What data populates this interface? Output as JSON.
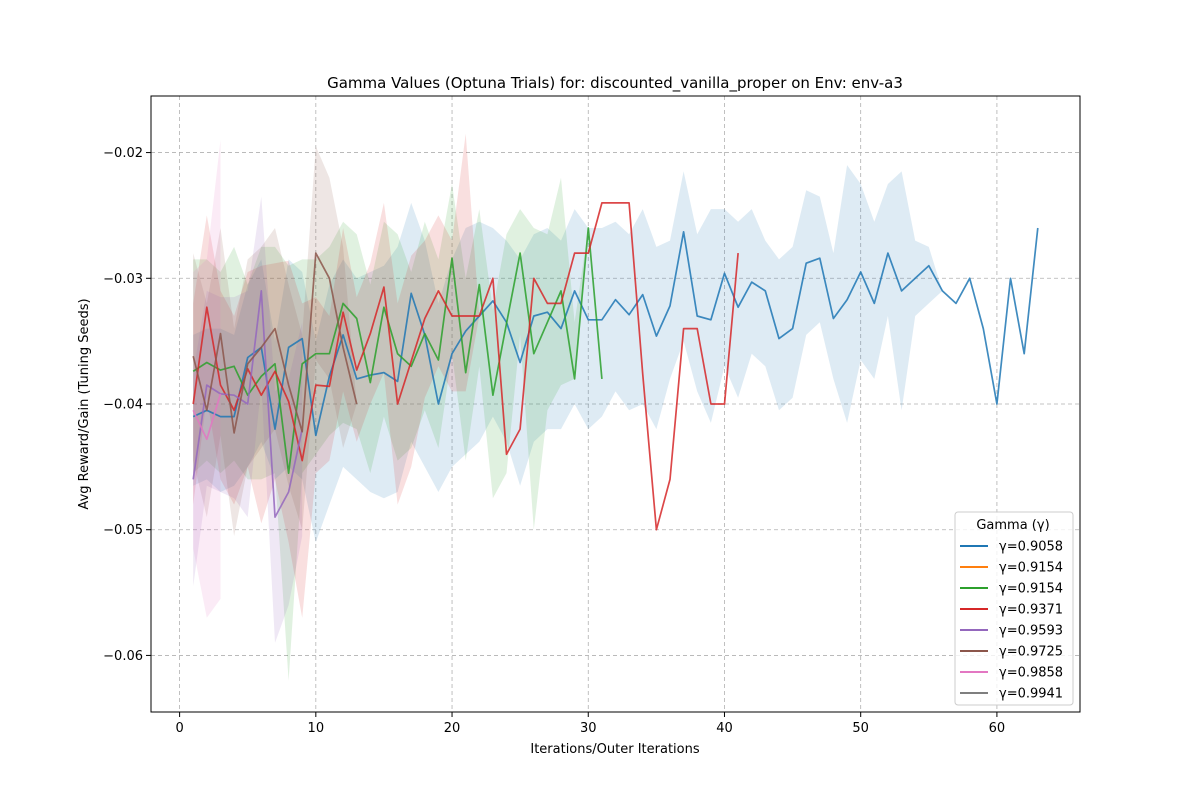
{
  "chart_data": {
    "type": "line",
    "title": "Gamma Values (Optuna Trials) for: discounted_vanilla_proper on Env: env-a3",
    "xlabel": "Iterations/Outer Iterations",
    "ylabel": "Avg Reward/Gain (Tuning Seeds)",
    "xlim": [
      -2.1,
      66.1
    ],
    "ylim": [
      -0.0645,
      -0.0155
    ],
    "xticks": [
      0,
      10,
      20,
      30,
      40,
      50,
      60
    ],
    "yticks": [
      -0.06,
      -0.05,
      -0.04,
      -0.03,
      -0.02
    ],
    "xtick_labels": [
      "0",
      "10",
      "20",
      "30",
      "40",
      "50",
      "60"
    ],
    "ytick_labels": [
      "−0.06",
      "−0.05",
      "−0.04",
      "−0.03",
      "−0.02"
    ],
    "grid": true,
    "legend_title": "Gamma (γ)",
    "legend_position": "lower-right",
    "series": [
      {
        "name": "γ=0.9058",
        "color": "#1f77b4",
        "x": [
          1,
          2,
          3,
          4,
          5,
          6,
          7,
          8,
          9,
          10,
          11,
          12,
          13,
          14,
          15,
          16,
          17,
          18,
          19,
          20,
          21,
          22,
          23,
          24,
          25,
          26,
          27,
          28,
          29,
          30,
          31,
          32,
          33,
          34,
          35,
          36,
          37,
          38,
          39,
          40,
          41,
          42,
          43,
          44,
          45,
          46,
          47,
          48,
          49,
          50,
          51,
          52,
          53,
          54,
          55,
          56,
          57,
          58,
          59,
          60,
          61,
          62,
          63
        ],
        "y": [
          -0.041,
          -0.0405,
          -0.041,
          -0.041,
          -0.0363,
          -0.0355,
          -0.042,
          -0.0355,
          -0.0348,
          -0.0425,
          -0.0378,
          -0.0345,
          -0.038,
          -0.0377,
          -0.0375,
          -0.0382,
          -0.0312,
          -0.0345,
          -0.04,
          -0.036,
          -0.0342,
          -0.033,
          -0.0318,
          -0.0335,
          -0.0367,
          -0.033,
          -0.0327,
          -0.034,
          -0.031,
          -0.0333,
          -0.0333,
          -0.0317,
          -0.0329,
          -0.0313,
          -0.0346,
          -0.0322,
          -0.0263,
          -0.033,
          -0.0333,
          -0.0296,
          -0.0323,
          -0.0303,
          -0.031,
          -0.0348,
          -0.034,
          -0.0288,
          -0.0284,
          -0.0332,
          -0.0317,
          -0.0295,
          -0.032,
          -0.028,
          -0.031,
          -0.03,
          -0.029,
          -0.031,
          -0.032,
          -0.03,
          -0.034,
          -0.04,
          -0.03,
          -0.036,
          -0.026
        ],
        "lower": [
          -0.0465,
          -0.046,
          -0.047,
          -0.0465,
          -0.045,
          -0.043,
          -0.046,
          -0.045,
          -0.046,
          -0.051,
          -0.048,
          -0.045,
          -0.046,
          -0.047,
          -0.0475,
          -0.047,
          -0.043,
          -0.045,
          -0.047,
          -0.045,
          -0.044,
          -0.043,
          -0.041,
          -0.043,
          -0.0465,
          -0.043,
          -0.042,
          -0.042,
          -0.04,
          -0.042,
          -0.041,
          -0.039,
          -0.0405,
          -0.04,
          -0.042,
          -0.038,
          -0.035,
          -0.039,
          -0.0415,
          -0.037,
          -0.0395,
          -0.036,
          -0.037,
          -0.0405,
          -0.0395,
          -0.0345,
          -0.0335,
          -0.038,
          -0.0415,
          -0.0365,
          -0.038,
          -0.033,
          -0.0405,
          -0.033,
          -0.032,
          -0.031,
          -0.032,
          -0.03,
          -0.034,
          -0.04,
          -0.03,
          -0.036,
          -0.026
        ],
        "upper": [
          -0.0345,
          -0.034,
          -0.034,
          -0.0345,
          -0.0305,
          -0.0285,
          -0.035,
          -0.0285,
          -0.0295,
          -0.035,
          -0.0305,
          -0.0285,
          -0.03,
          -0.0295,
          -0.029,
          -0.0275,
          -0.024,
          -0.027,
          -0.032,
          -0.0285,
          -0.026,
          -0.0255,
          -0.026,
          -0.027,
          -0.0285,
          -0.0265,
          -0.026,
          -0.027,
          -0.0245,
          -0.026,
          -0.026,
          -0.0255,
          -0.0265,
          -0.0245,
          -0.0275,
          -0.027,
          -0.0215,
          -0.0265,
          -0.0245,
          -0.0245,
          -0.0255,
          -0.0245,
          -0.027,
          -0.0285,
          -0.0275,
          -0.023,
          -0.0235,
          -0.028,
          -0.021,
          -0.0225,
          -0.0255,
          -0.0225,
          -0.0215,
          -0.027,
          -0.0275,
          -0.031,
          -0.032,
          -0.03,
          -0.034,
          -0.04,
          -0.03,
          -0.036,
          -0.026
        ]
      },
      {
        "name": "γ=0.9154",
        "color": "#ff7f0e",
        "x": [],
        "y": []
      },
      {
        "name": "γ=0.9154",
        "color": "#2ca02c",
        "x": [
          1,
          2,
          3,
          4,
          5,
          6,
          7,
          8,
          9,
          10,
          11,
          12,
          13,
          14,
          15,
          16,
          17,
          18,
          19,
          20,
          21,
          22,
          23,
          24,
          25,
          26,
          27,
          28,
          29,
          30,
          31
        ],
        "y": [
          -0.0374,
          -0.0367,
          -0.0373,
          -0.037,
          -0.0393,
          -0.0378,
          -0.0368,
          -0.0455,
          -0.0368,
          -0.036,
          -0.036,
          -0.032,
          -0.0332,
          -0.0383,
          -0.0323,
          -0.036,
          -0.037,
          -0.0344,
          -0.0365,
          -0.0284,
          -0.0375,
          -0.0305,
          -0.0393,
          -0.0336,
          -0.028,
          -0.036,
          -0.0335,
          -0.031,
          -0.038,
          -0.026,
          -0.038
        ],
        "lower": [
          -0.0455,
          -0.0445,
          -0.0455,
          -0.0445,
          -0.046,
          -0.046,
          -0.0455,
          -0.062,
          -0.0455,
          -0.044,
          -0.0425,
          -0.0415,
          -0.042,
          -0.0455,
          -0.041,
          -0.0445,
          -0.0435,
          -0.0405,
          -0.0435,
          -0.036,
          -0.0445,
          -0.037,
          -0.0475,
          -0.0455,
          -0.0345,
          -0.05,
          -0.0405,
          -0.0385,
          -0.038,
          -0.026,
          -0.038
        ],
        "upper": [
          -0.0285,
          -0.0285,
          -0.0295,
          -0.0275,
          -0.0305,
          -0.0275,
          -0.0275,
          -0.029,
          -0.0285,
          -0.0285,
          -0.0275,
          -0.0255,
          -0.0265,
          -0.0305,
          -0.0255,
          -0.0265,
          -0.0295,
          -0.0255,
          -0.0285,
          -0.0225,
          -0.03,
          -0.0245,
          -0.0325,
          -0.0265,
          -0.0245,
          -0.026,
          -0.0265,
          -0.022,
          -0.0335,
          -0.026,
          -0.038
        ]
      },
      {
        "name": "γ=0.9371",
        "color": "#d62728",
        "x": [
          1,
          2,
          3,
          4,
          5,
          6,
          7,
          8,
          9,
          10,
          11,
          12,
          13,
          14,
          15,
          16,
          17,
          18,
          19,
          20,
          21,
          22,
          23,
          24,
          25,
          26,
          27,
          28,
          29,
          30,
          31,
          32,
          33,
          34,
          35,
          36,
          37,
          38,
          39,
          40,
          41
        ],
        "y": [
          -0.04,
          -0.0323,
          -0.0385,
          -0.0405,
          -0.0372,
          -0.0393,
          -0.0374,
          -0.0398,
          -0.0445,
          -0.0385,
          -0.0386,
          -0.0327,
          -0.0373,
          -0.0344,
          -0.0307,
          -0.04,
          -0.0366,
          -0.0332,
          -0.031,
          -0.033,
          -0.033,
          -0.033,
          -0.03,
          -0.044,
          -0.042,
          -0.03,
          -0.032,
          -0.032,
          -0.028,
          -0.028,
          -0.024,
          -0.024,
          -0.024,
          -0.0376,
          -0.05,
          -0.046,
          -0.034,
          -0.034,
          -0.04,
          -0.04,
          -0.028
        ],
        "lower": [
          -0.048,
          -0.0395,
          -0.046,
          -0.048,
          -0.045,
          -0.0495,
          -0.046,
          -0.051,
          -0.057,
          -0.0455,
          -0.0445,
          -0.039,
          -0.043,
          -0.04,
          -0.0375,
          -0.048,
          -0.045,
          -0.0395,
          -0.037,
          -0.039,
          -0.039,
          -0.033,
          -0.03,
          -0.044,
          -0.042,
          -0.03,
          -0.032,
          -0.032,
          -0.028,
          -0.028,
          -0.024,
          -0.024,
          -0.024,
          -0.0376,
          -0.05,
          -0.046,
          -0.034,
          -0.034,
          -0.04,
          -0.04,
          -0.028
        ],
        "upper": [
          -0.032,
          -0.025,
          -0.031,
          -0.033,
          -0.0295,
          -0.029,
          -0.0288,
          -0.0286,
          -0.032,
          -0.0315,
          -0.033,
          -0.026,
          -0.0315,
          -0.0288,
          -0.024,
          -0.032,
          -0.0282,
          -0.027,
          -0.025,
          -0.027,
          -0.0185,
          -0.033,
          -0.03,
          -0.044,
          -0.042,
          -0.03,
          -0.032,
          -0.032,
          -0.028,
          -0.028,
          -0.024,
          -0.024,
          -0.024,
          -0.0376,
          -0.05,
          -0.046,
          -0.034,
          -0.034,
          -0.04,
          -0.04,
          -0.028
        ]
      },
      {
        "name": "γ=0.9593",
        "color": "#9467bd",
        "x": [
          1,
          2,
          3,
          4,
          5,
          6,
          7,
          8,
          9
        ],
        "y": [
          -0.046,
          -0.0385,
          -0.0392,
          -0.0393,
          -0.04,
          -0.031,
          -0.049,
          -0.047,
          -0.042
        ],
        "lower": [
          -0.0545,
          -0.0465,
          -0.047,
          -0.0475,
          -0.049,
          -0.0385,
          -0.059,
          -0.056,
          -0.0505
        ],
        "upper": [
          -0.0375,
          -0.031,
          -0.0315,
          -0.0315,
          -0.031,
          -0.0235,
          -0.039,
          -0.038,
          -0.0335
        ]
      },
      {
        "name": "γ=0.9725",
        "color": "#8c564b",
        "x": [
          1,
          2,
          3,
          4,
          5,
          6,
          7,
          8,
          9,
          10,
          11,
          12,
          13
        ],
        "y": [
          -0.0362,
          -0.0405,
          -0.0344,
          -0.0423,
          -0.0368,
          -0.0355,
          -0.034,
          -0.0385,
          -0.0422,
          -0.028,
          -0.03,
          -0.0355,
          -0.04
        ],
        "lower": [
          -0.0445,
          -0.049,
          -0.0425,
          -0.0505,
          -0.045,
          -0.0435,
          -0.042,
          -0.0465,
          -0.05,
          -0.0365,
          -0.038,
          -0.0435,
          -0.04
        ],
        "upper": [
          -0.028,
          -0.032,
          -0.026,
          -0.034,
          -0.0285,
          -0.0275,
          -0.026,
          -0.0305,
          -0.0345,
          -0.0195,
          -0.022,
          -0.0275,
          -0.04
        ]
      },
      {
        "name": "γ=0.9858",
        "color": "#e377c2",
        "x": [
          1,
          2,
          3
        ],
        "y": [
          -0.0405,
          -0.0428,
          -0.0392
        ],
        "lower": [
          -0.0515,
          -0.057,
          -0.0555
        ],
        "upper": [
          -0.0295,
          -0.0285,
          -0.019
        ]
      },
      {
        "name": "γ=0.9941",
        "color": "#7f7f7f",
        "x": [],
        "y": []
      }
    ]
  }
}
